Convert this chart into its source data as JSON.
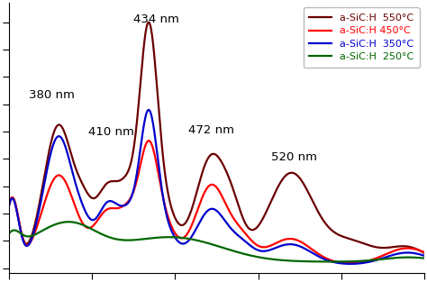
{
  "background_color": "#ffffff",
  "plot_bg_color": "#ffffff",
  "legend_labels": [
    "a-SiC:H  550°C",
    "a-SiC:H 450°C",
    "a-SiC:H  350°C",
    "a-SiC:H  250°C"
  ],
  "legend_colors": [
    "#6b0000",
    "#ff0000",
    "#0000cc",
    "#006600"
  ],
  "ann_color": "#000000",
  "ann_fontsize": 9.5,
  "line_width": 1.6,
  "xmin": 350,
  "xmax": 600,
  "ymin": -0.02,
  "ymax": 1.08
}
